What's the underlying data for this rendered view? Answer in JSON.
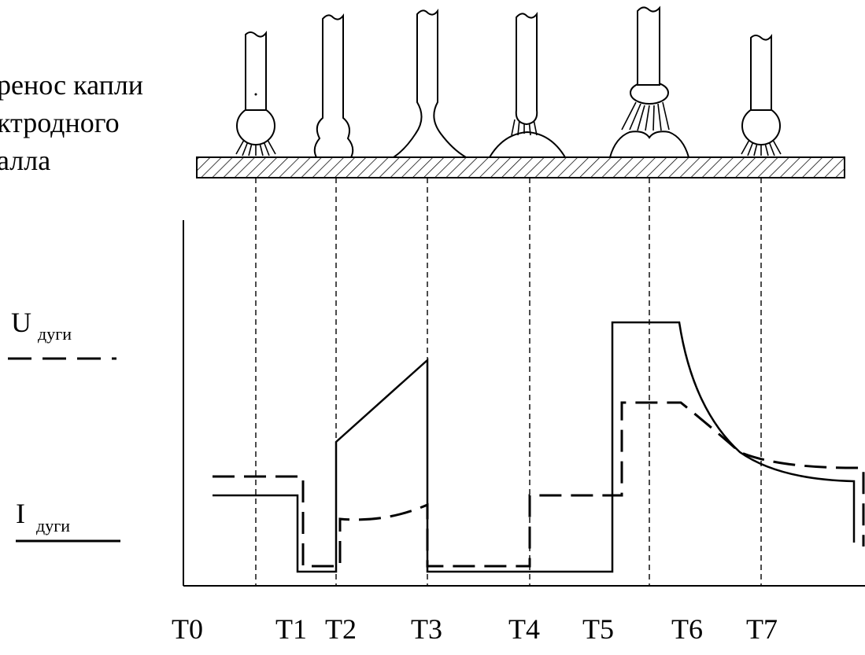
{
  "title_lines": [
    "ренос капли",
    "ктродного",
    "алла"
  ],
  "legend": [
    {
      "symbol": "U",
      "subscript": "дуги"
    },
    {
      "symbol": "I",
      "subscript": "дуги"
    }
  ],
  "time_labels": [
    "T0",
    "T1",
    "T2",
    "T3",
    "T4",
    "T5",
    "T6",
    "T7"
  ]
}
